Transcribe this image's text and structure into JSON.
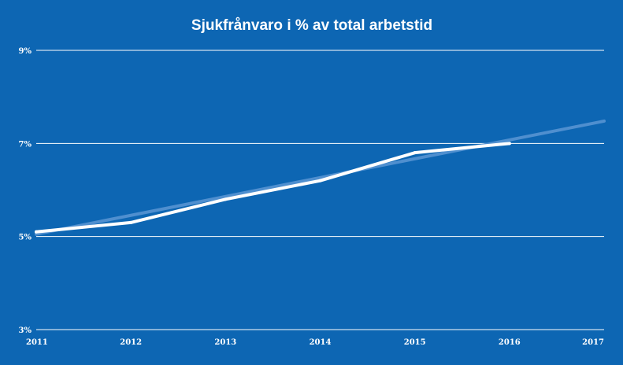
{
  "chart_data": {
    "type": "line",
    "title": "Sjukfrånvaro i % av total arbetstid",
    "xlabel": "",
    "ylabel": "",
    "x": [
      2011,
      2012,
      2013,
      2014,
      2015,
      2016,
      2017
    ],
    "x_tick_labels": [
      "2011",
      "2012",
      "2013",
      "2014",
      "2015",
      "2016",
      "2017"
    ],
    "y_ticks": [
      3,
      5,
      7,
      9
    ],
    "y_tick_labels": [
      "3%",
      "5%",
      "7%",
      "9%"
    ],
    "xlim": [
      2011,
      2017
    ],
    "ylim": [
      3,
      9
    ],
    "grid": true,
    "legend": "none",
    "series": [
      {
        "x": [
          2011,
          2012,
          2013,
          2014,
          2015,
          2016
        ],
        "values": [
          5.1,
          5.3,
          5.8,
          6.2,
          6.8,
          7.0
        ],
        "color": "#ffffff"
      }
    ],
    "trendline": {
      "x": [
        2011,
        2017
      ],
      "values": [
        5.05,
        7.48
      ],
      "color": "#4f8fcf"
    }
  }
}
